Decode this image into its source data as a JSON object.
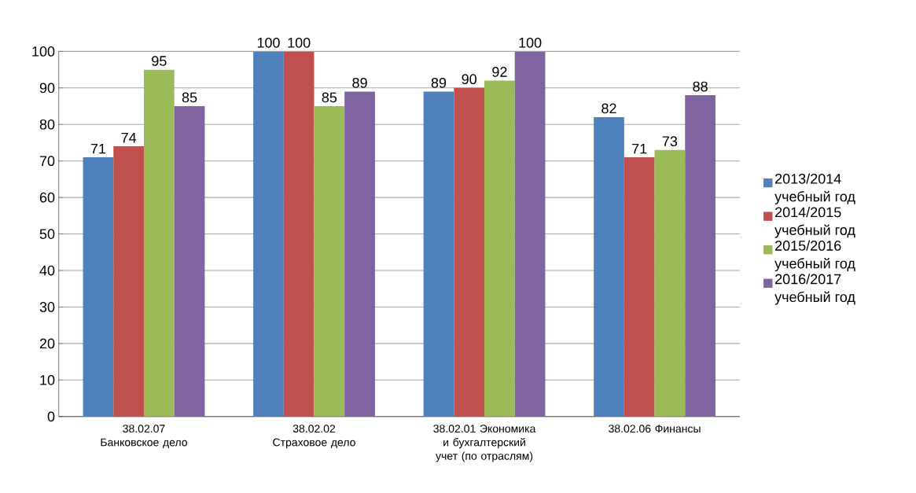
{
  "chart_data": {
    "type": "bar",
    "categories": [
      "38.02.07 Банковское дело",
      "38.02.02 Страховое дело",
      "38.02.01 Экономика и бухгалтерский учет (по отраслям)",
      "38.02.06 Финансы"
    ],
    "series": [
      {
        "name": "2013/2014 учебный год",
        "color": "#4f81bd",
        "values": [
          71,
          100,
          89,
          82
        ]
      },
      {
        "name": "2014/2015 учебный год",
        "color": "#c0504d",
        "values": [
          74,
          100,
          90,
          71
        ]
      },
      {
        "name": "2015/2016 учебный год",
        "color": "#9bbb59",
        "values": [
          95,
          85,
          92,
          73
        ]
      },
      {
        "name": "2016/2017 учебный год",
        "color": "#8064a2",
        "values": [
          85,
          89,
          100,
          88
        ]
      }
    ],
    "ylim": [
      0,
      100
    ],
    "yticks": [
      0,
      10,
      20,
      30,
      40,
      50,
      60,
      70,
      80,
      90,
      100
    ],
    "grid": "y",
    "legend": "right",
    "data_labels": true
  }
}
